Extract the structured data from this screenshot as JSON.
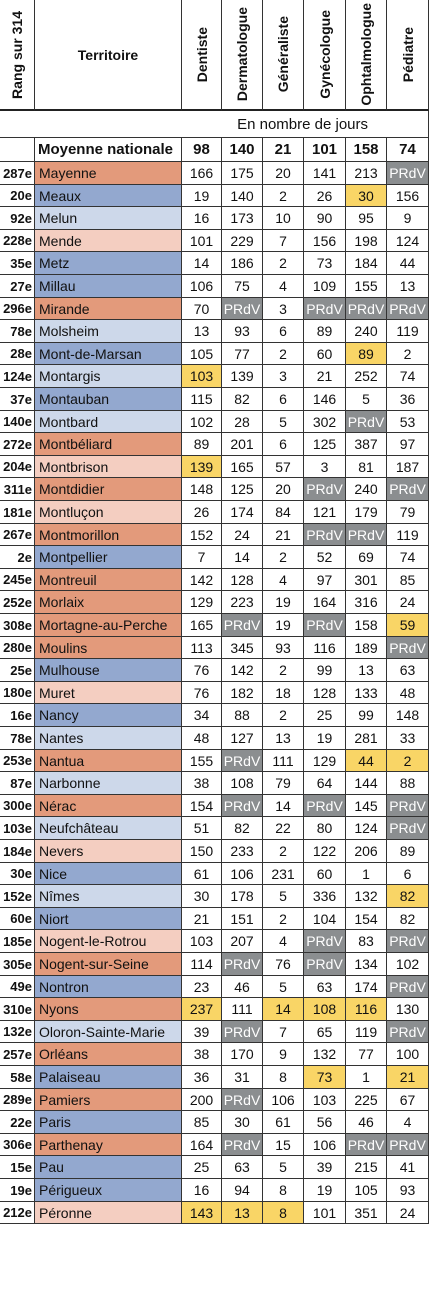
{
  "chart_data": {
    "type": "table",
    "headers": {
      "rank": "Rang sur 314",
      "territory": "Territoire",
      "columns": [
        "Dentiste",
        "Dermatologue",
        "Généraliste",
        "Gynécologue",
        "Ophtalmologue",
        "Pédiatre"
      ]
    },
    "unit_label": "En nombre de jours",
    "national": {
      "label": "Moyenne nationale",
      "values": [
        "98",
        "140",
        "21",
        "101",
        "158",
        "74"
      ]
    },
    "colors": {
      "c1": "#e39a7b",
      "c2": "#f4cec1",
      "c3": "#cdd8ea",
      "c4": "#93a8cf",
      "highlight": "#f9d566",
      "na": "#8b8e90"
    },
    "rows": [
      {
        "rank": "287e",
        "name": "Mayenne",
        "cls": "c1",
        "values": [
          "166",
          "175",
          "20",
          "141",
          "213",
          "PRdV"
        ],
        "hl": []
      },
      {
        "rank": "20e",
        "name": "Meaux",
        "cls": "c4",
        "values": [
          "19",
          "140",
          "2",
          "26",
          "30",
          "156"
        ],
        "hl": [
          4
        ]
      },
      {
        "rank": "92e",
        "name": "Melun",
        "cls": "c3",
        "values": [
          "16",
          "173",
          "10",
          "90",
          "95",
          "9"
        ],
        "hl": []
      },
      {
        "rank": "228e",
        "name": "Mende",
        "cls": "c2",
        "values": [
          "101",
          "229",
          "7",
          "156",
          "198",
          "124"
        ],
        "hl": []
      },
      {
        "rank": "35e",
        "name": "Metz",
        "cls": "c4",
        "values": [
          "14",
          "186",
          "2",
          "73",
          "184",
          "44"
        ],
        "hl": []
      },
      {
        "rank": "27e",
        "name": "Millau",
        "cls": "c4",
        "values": [
          "106",
          "75",
          "4",
          "109",
          "155",
          "13"
        ],
        "hl": []
      },
      {
        "rank": "296e",
        "name": "Mirande",
        "cls": "c1",
        "values": [
          "70",
          "PRdV",
          "3",
          "PRdV",
          "PRdV",
          "PRdV"
        ],
        "hl": []
      },
      {
        "rank": "78e",
        "name": "Molsheim",
        "cls": "c3",
        "values": [
          "13",
          "93",
          "6",
          "89",
          "240",
          "119"
        ],
        "hl": []
      },
      {
        "rank": "28e",
        "name": "Mont-de-Marsan",
        "cls": "c4",
        "values": [
          "105",
          "77",
          "2",
          "60",
          "89",
          "2"
        ],
        "hl": [
          4
        ]
      },
      {
        "rank": "124e",
        "name": "Montargis",
        "cls": "c3",
        "values": [
          "103",
          "139",
          "3",
          "21",
          "252",
          "74"
        ],
        "hl": [
          0
        ]
      },
      {
        "rank": "37e",
        "name": "Montauban",
        "cls": "c4",
        "values": [
          "115",
          "82",
          "6",
          "146",
          "5",
          "36"
        ],
        "hl": []
      },
      {
        "rank": "140e",
        "name": "Montbard",
        "cls": "c3",
        "values": [
          "102",
          "28",
          "5",
          "302",
          "PRdV",
          "53"
        ],
        "hl": []
      },
      {
        "rank": "272e",
        "name": "Montbéliard",
        "cls": "c1",
        "values": [
          "89",
          "201",
          "6",
          "125",
          "387",
          "97"
        ],
        "hl": []
      },
      {
        "rank": "204e",
        "name": "Montbrison",
        "cls": "c2",
        "values": [
          "139",
          "165",
          "57",
          "3",
          "81",
          "187"
        ],
        "hl": [
          0
        ]
      },
      {
        "rank": "311e",
        "name": "Montdidier",
        "cls": "c1",
        "values": [
          "148",
          "125",
          "20",
          "PRdV",
          "240",
          "PRdV"
        ],
        "hl": []
      },
      {
        "rank": "181e",
        "name": "Montluçon",
        "cls": "c2",
        "values": [
          "26",
          "174",
          "84",
          "121",
          "179",
          "79"
        ],
        "hl": []
      },
      {
        "rank": "267e",
        "name": "Montmorillon",
        "cls": "c1",
        "values": [
          "152",
          "24",
          "21",
          "PRdV",
          "PRdV",
          "119"
        ],
        "hl": []
      },
      {
        "rank": "2e",
        "name": "Montpellier",
        "cls": "c4",
        "values": [
          "7",
          "14",
          "2",
          "52",
          "69",
          "74"
        ],
        "hl": []
      },
      {
        "rank": "245e",
        "name": "Montreuil",
        "cls": "c1",
        "values": [
          "142",
          "128",
          "4",
          "97",
          "301",
          "85"
        ],
        "hl": []
      },
      {
        "rank": "252e",
        "name": "Morlaix",
        "cls": "c1",
        "values": [
          "129",
          "223",
          "19",
          "164",
          "316",
          "24"
        ],
        "hl": []
      },
      {
        "rank": "308e",
        "name": "Mortagne-au-Perche",
        "cls": "c1",
        "values": [
          "165",
          "PRdV",
          "19",
          "PRdV",
          "158",
          "59"
        ],
        "hl": [
          5
        ]
      },
      {
        "rank": "280e",
        "name": "Moulins",
        "cls": "c1",
        "values": [
          "113",
          "345",
          "93",
          "116",
          "189",
          "PRdV"
        ],
        "hl": []
      },
      {
        "rank": "25e",
        "name": "Mulhouse",
        "cls": "c4",
        "values": [
          "76",
          "142",
          "2",
          "99",
          "13",
          "63"
        ],
        "hl": []
      },
      {
        "rank": "180e",
        "name": "Muret",
        "cls": "c2",
        "values": [
          "76",
          "182",
          "18",
          "128",
          "133",
          "48"
        ],
        "hl": []
      },
      {
        "rank": "16e",
        "name": "Nancy",
        "cls": "c4",
        "values": [
          "34",
          "88",
          "2",
          "25",
          "99",
          "148"
        ],
        "hl": []
      },
      {
        "rank": "78e",
        "name": "Nantes",
        "cls": "c3",
        "values": [
          "48",
          "127",
          "13",
          "19",
          "281",
          "33"
        ],
        "hl": []
      },
      {
        "rank": "253e",
        "name": "Nantua",
        "cls": "c1",
        "values": [
          "155",
          "PRdV",
          "111",
          "129",
          "44",
          "2"
        ],
        "hl": [
          4,
          5
        ]
      },
      {
        "rank": "87e",
        "name": "Narbonne",
        "cls": "c3",
        "values": [
          "38",
          "108",
          "79",
          "64",
          "144",
          "88"
        ],
        "hl": []
      },
      {
        "rank": "300e",
        "name": "Nérac",
        "cls": "c1",
        "values": [
          "154",
          "PRdV",
          "14",
          "PRdV",
          "145",
          "PRdV"
        ],
        "hl": []
      },
      {
        "rank": "103e",
        "name": "Neufchâteau",
        "cls": "c3",
        "values": [
          "51",
          "82",
          "22",
          "80",
          "124",
          "PRdV"
        ],
        "hl": []
      },
      {
        "rank": "184e",
        "name": "Nevers",
        "cls": "c2",
        "values": [
          "150",
          "233",
          "2",
          "122",
          "206",
          "89"
        ],
        "hl": []
      },
      {
        "rank": "30e",
        "name": "Nice",
        "cls": "c4",
        "values": [
          "61",
          "106",
          "231",
          "60",
          "1",
          "6"
        ],
        "hl": []
      },
      {
        "rank": "152e",
        "name": "Nîmes",
        "cls": "c3",
        "values": [
          "30",
          "178",
          "5",
          "336",
          "132",
          "82"
        ],
        "hl": [
          5
        ]
      },
      {
        "rank": "60e",
        "name": "Niort",
        "cls": "c4",
        "values": [
          "21",
          "151",
          "2",
          "104",
          "154",
          "82"
        ],
        "hl": []
      },
      {
        "rank": "185e",
        "name": "Nogent-le-Rotrou",
        "cls": "c2",
        "values": [
          "103",
          "207",
          "4",
          "PRdV",
          "83",
          "PRdV"
        ],
        "hl": []
      },
      {
        "rank": "305e",
        "name": "Nogent-sur-Seine",
        "cls": "c1",
        "values": [
          "114",
          "PRdV",
          "76",
          "PRdV",
          "134",
          "102"
        ],
        "hl": []
      },
      {
        "rank": "49e",
        "name": "Nontron",
        "cls": "c4",
        "values": [
          "23",
          "46",
          "5",
          "63",
          "174",
          "PRdV"
        ],
        "hl": []
      },
      {
        "rank": "310e",
        "name": "Nyons",
        "cls": "c1",
        "values": [
          "237",
          "111",
          "14",
          "108",
          "116",
          "130"
        ],
        "hl": [
          0,
          2,
          3,
          4
        ]
      },
      {
        "rank": "132e",
        "name": "Oloron-Sainte-Marie",
        "cls": "c3",
        "values": [
          "39",
          "PRdV",
          "7",
          "65",
          "119",
          "PRdV"
        ],
        "hl": []
      },
      {
        "rank": "257e",
        "name": "Orléans",
        "cls": "c1",
        "values": [
          "38",
          "170",
          "9",
          "132",
          "77",
          "100"
        ],
        "hl": []
      },
      {
        "rank": "58e",
        "name": "Palaiseau",
        "cls": "c4",
        "values": [
          "36",
          "31",
          "8",
          "73",
          "1",
          "21"
        ],
        "hl": [
          3,
          5
        ]
      },
      {
        "rank": "289e",
        "name": "Pamiers",
        "cls": "c1",
        "values": [
          "200",
          "PRdV",
          "106",
          "103",
          "225",
          "67"
        ],
        "hl": []
      },
      {
        "rank": "22e",
        "name": "Paris",
        "cls": "c4",
        "values": [
          "85",
          "30",
          "61",
          "56",
          "46",
          "4"
        ],
        "hl": []
      },
      {
        "rank": "306e",
        "name": "Parthenay",
        "cls": "c1",
        "values": [
          "164",
          "PRdV",
          "15",
          "106",
          "PRdV",
          "PRdV"
        ],
        "hl": []
      },
      {
        "rank": "15e",
        "name": "Pau",
        "cls": "c4",
        "values": [
          "25",
          "63",
          "5",
          "39",
          "215",
          "41"
        ],
        "hl": []
      },
      {
        "rank": "19e",
        "name": "Périgueux",
        "cls": "c4",
        "values": [
          "16",
          "94",
          "8",
          "19",
          "105",
          "93"
        ],
        "hl": []
      },
      {
        "rank": "212e",
        "name": "Péronne",
        "cls": "c2",
        "values": [
          "143",
          "13",
          "8",
          "101",
          "351",
          "24"
        ],
        "hl": [
          0,
          1,
          2
        ]
      }
    ]
  }
}
